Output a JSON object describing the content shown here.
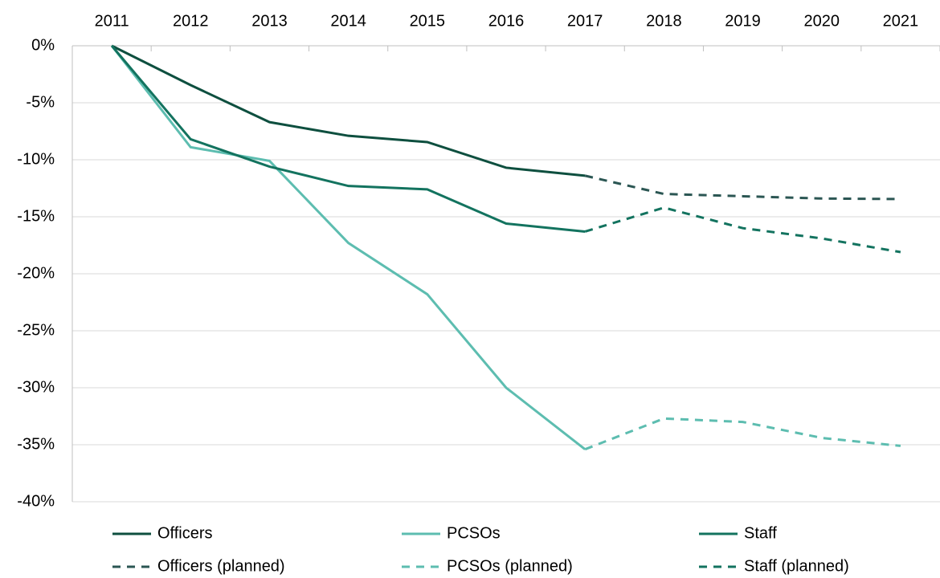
{
  "chart_data": {
    "type": "line",
    "categories": [
      "2011",
      "2012",
      "2013",
      "2014",
      "2015",
      "2016",
      "2017",
      "2018",
      "2019",
      "2020",
      "2021"
    ],
    "series": [
      {
        "name": "Officers",
        "color": "#0e4f3f",
        "dash": false,
        "values": [
          0,
          -3.45,
          -6.7,
          -7.9,
          -8.45,
          -10.7,
          -11.4,
          null,
          null,
          null,
          null
        ]
      },
      {
        "name": "PCSOs",
        "color": "#5dbdb0",
        "dash": false,
        "values": [
          0,
          -8.9,
          -10.1,
          -17.3,
          -21.8,
          -30.0,
          -35.4,
          null,
          null,
          null,
          null
        ]
      },
      {
        "name": "Staff",
        "color": "#13735f",
        "dash": false,
        "values": [
          0,
          -8.2,
          -10.6,
          -12.3,
          -12.6,
          -15.6,
          -16.3,
          null,
          null,
          null,
          null
        ]
      },
      {
        "name": "Officers (planned)",
        "color": "#2b5653",
        "dash": true,
        "values": [
          null,
          null,
          null,
          null,
          null,
          null,
          -11.4,
          -13.0,
          -13.2,
          -13.4,
          -13.45
        ]
      },
      {
        "name": "PCSOs (planned)",
        "color": "#5dbdb0",
        "dash": true,
        "values": [
          null,
          null,
          null,
          null,
          null,
          null,
          -35.4,
          -32.7,
          -33.0,
          -34.4,
          -35.1
        ]
      },
      {
        "name": "Staff (planned)",
        "color": "#13735f",
        "dash": true,
        "values": [
          null,
          null,
          null,
          null,
          null,
          null,
          -16.3,
          -14.2,
          -16.0,
          -16.9,
          -18.1
        ]
      }
    ],
    "ylim": [
      -40,
      0
    ],
    "yticks": [
      {
        "value": 0,
        "label": "0%"
      },
      {
        "value": -5,
        "label": "-5%"
      },
      {
        "value": -10,
        "label": "-10%"
      },
      {
        "value": -15,
        "label": "-15%"
      },
      {
        "value": -20,
        "label": "-20%"
      },
      {
        "value": -25,
        "label": "-25%"
      },
      {
        "value": -30,
        "label": "-30%"
      },
      {
        "value": -35,
        "label": "-35%"
      },
      {
        "value": -40,
        "label": "-40%"
      }
    ],
    "grid": true
  }
}
